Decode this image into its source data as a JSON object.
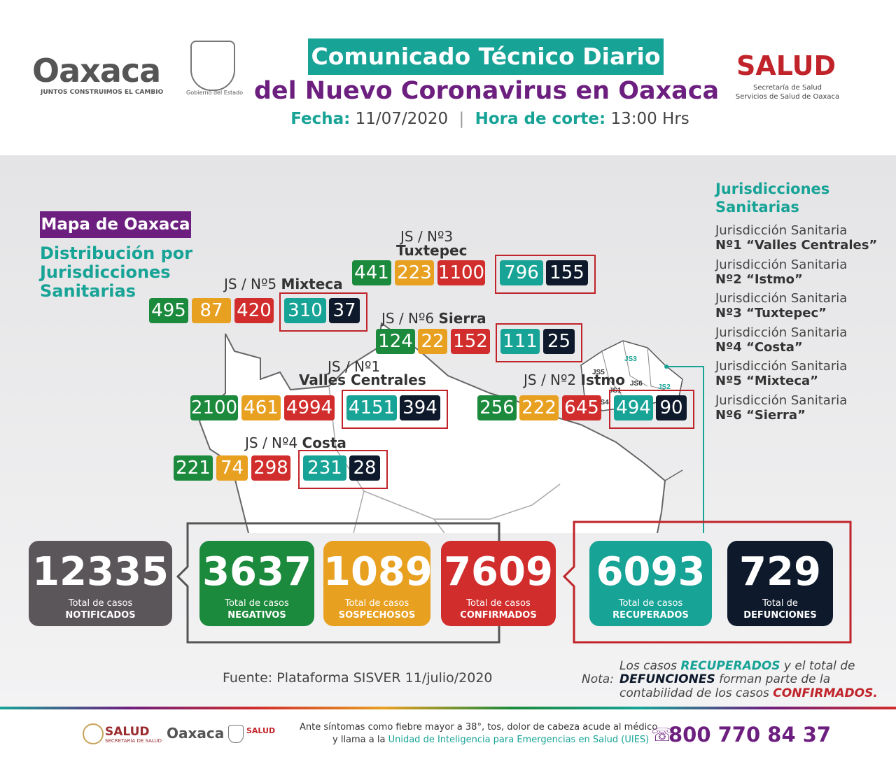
{
  "header": {
    "logo_text": "Oaxaca",
    "logo_slogan": "JUNTOS CONSTRUIMOS EL CAMBIO",
    "seal_caption": "Gobierno del Estado",
    "title_line1": "Comunicado Técnico Diario",
    "title_line2": "del Nuevo Coronavirus en Oaxaca",
    "fecha_label": "Fecha:",
    "fecha_value": "11/07/2020",
    "hora_label": "Hora de corte:",
    "hora_value": "13:00 Hrs",
    "salud_logo": "SALUD",
    "salud_sub1": "Secretaría de Salud",
    "salud_sub2": "Servicios de Salud de Oaxaca"
  },
  "map": {
    "title": "Mapa de Oaxaca",
    "subtitle_lines": [
      "Distribución por",
      "Jurisdicciones",
      "Sanitarias"
    ],
    "jurisdictions": [
      {
        "label_pre": "JS / Nº3",
        "label_name": "Tuxtepec",
        "values": [
          "441",
          "223",
          "1100",
          "796",
          "155"
        ]
      },
      {
        "label_pre": "JS / Nº5",
        "label_name": "Mixteca",
        "values": [
          "495",
          "87",
          "420",
          "310",
          "37"
        ]
      },
      {
        "label_pre": "JS / Nº6",
        "label_name": "Sierra",
        "values": [
          "124",
          "22",
          "152",
          "111",
          "25"
        ]
      },
      {
        "label_pre": "JS / Nº1",
        "label_name": "Valles Centrales",
        "values": [
          "2100",
          "461",
          "4994",
          "4151",
          "394"
        ]
      },
      {
        "label_pre": "JS / Nº2",
        "label_name": "Istmo",
        "values": [
          "256",
          "222",
          "645",
          "494",
          "90"
        ]
      },
      {
        "label_pre": "JS / Nº4",
        "label_name": "Costa",
        "values": [
          "221",
          "74",
          "298",
          "231",
          "28"
        ]
      }
    ],
    "mini_labels": [
      "JS3",
      "JS5",
      "JS1",
      "JS6",
      "JS2",
      "JS4"
    ]
  },
  "legend": {
    "title_lines": [
      "Jurisdicciones",
      "Sanitarias"
    ],
    "items": [
      {
        "line1": "Jurisdicción Sanitaria",
        "line2": "Nº1 “Valles Centrales”"
      },
      {
        "line1": "Jurisdicción Sanitaria",
        "line2": "Nº2 “Istmo”"
      },
      {
        "line1": "Jurisdicción Sanitaria",
        "line2": "Nº3 “Tuxtepec”"
      },
      {
        "line1": "Jurisdicción Sanitaria",
        "line2": "Nº4 “Costa”"
      },
      {
        "line1": "Jurisdicción Sanitaria",
        "line2": "Nº5 “Mixteca”"
      },
      {
        "line1": "Jurisdicción Sanitaria",
        "line2": "Nº6 “Sierra”"
      }
    ]
  },
  "totals": [
    {
      "value": "12335",
      "line1": "Total de casos",
      "line2": "NOTIFICADOS",
      "color": "#5b5659"
    },
    {
      "value": "3637",
      "line1": "Total de casos",
      "line2": "NEGATIVOS",
      "color": "#1c8a3c"
    },
    {
      "value": "1089",
      "line1": "Total de casos",
      "line2": "SOSPECHOSOS",
      "color": "#e8a021"
    },
    {
      "value": "7609",
      "line1": "Total de casos",
      "line2": "CONFIRMADOS",
      "color": "#d12d2c"
    },
    {
      "value": "6093",
      "line1": "Total de casos",
      "line2": "RECUPERADOS",
      "color": "#17a396"
    },
    {
      "value": "729",
      "line1": "Total de",
      "line2": "DEFUNCIONES",
      "color": "#0e1a2b"
    }
  ],
  "source": "Fuente: Plataforma SISVER 11/julio/2020",
  "note": {
    "label": "Nota:",
    "l1_a": "Los casos ",
    "l1_b": "RECUPERADOS",
    "l1_c": " y el total de",
    "l2_a": "DEFUNCIONES",
    "l2_b": " forman parte de la",
    "l3_a": "contabilidad de los casos ",
    "l3_b": "CONFIRMADOS."
  },
  "footer": {
    "salud": "SALUD",
    "salud_sub": "SECRETARÍA DE SALUD",
    "oaxaca": "Oaxaca",
    "salud2": "SALUD",
    "text1": "Ante síntomas como fiebre mayor a 38°, tos, dolor de cabeza acude al médico",
    "text2_a": "y llama a la ",
    "text2_b": "Unidad de Inteligencia para Emergencias en Salud (UIES)",
    "phone": "800 770 84 37"
  },
  "colors": {
    "teal": "#17a396",
    "purple": "#6d1f7f",
    "green": "#1c8a3c",
    "orange": "#e8a021",
    "red": "#d12d2c",
    "navy": "#0e1a2b",
    "gray": "#5b5659"
  }
}
